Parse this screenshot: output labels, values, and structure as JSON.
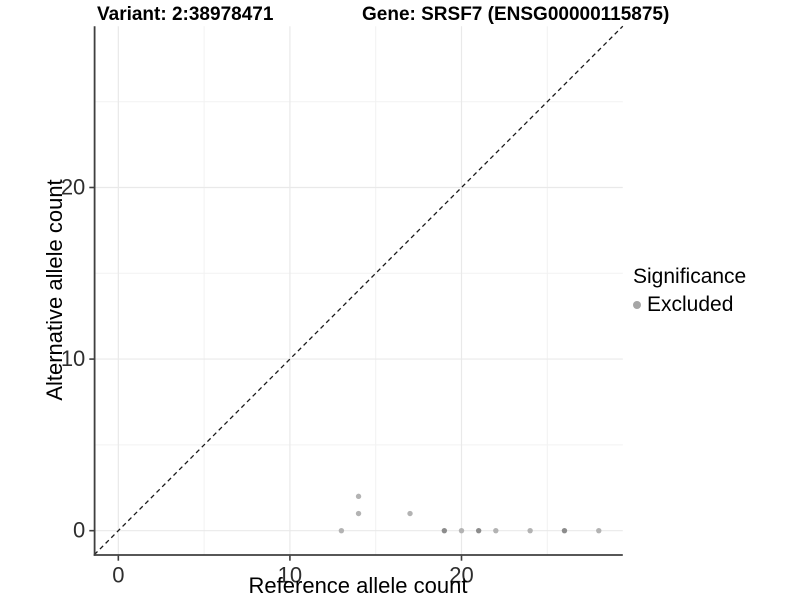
{
  "titles": {
    "variant": "Variant: 2:38978471",
    "gene": "Gene: SRSF7 (ENSG00000115875)"
  },
  "legend": {
    "title": "Significance",
    "items": [
      {
        "label": "Excluded",
        "color": "#a6a6a6"
      }
    ]
  },
  "colors": {
    "point_light": "#b3b3b3",
    "point_dark": "#8c8c8c",
    "grid_major": "#e9e9e9",
    "grid_minor": "#f2f2f2",
    "axis_line": "#3f3f3f",
    "tick_text": "#2e2e2e",
    "identity_line": "#1a1a1a",
    "background": "#ffffff"
  },
  "chart_data": {
    "type": "scatter",
    "title": "Variant: 2:38978471  |  Gene: SRSF7 (ENSG00000115875)",
    "xlabel": "Reference allele count",
    "ylabel": "Alternative allele count",
    "xlim": [
      -1.4,
      29.4
    ],
    "ylim": [
      -1.4,
      29.4
    ],
    "x_ticks": [
      0,
      10,
      20
    ],
    "y_ticks": [
      0,
      10,
      20
    ],
    "x_minor_ticks": [
      5,
      15,
      25
    ],
    "y_minor_ticks": [
      5,
      15,
      25
    ],
    "grid": "on",
    "legend_position": "right",
    "identity_line": {
      "style": "dashed",
      "from": [
        -1.4,
        -1.4
      ],
      "to": [
        29.4,
        29.4
      ]
    },
    "series": [
      {
        "name": "Excluded",
        "points": [
          {
            "x": 13,
            "y": 0,
            "shade": "light"
          },
          {
            "x": 14,
            "y": 1,
            "shade": "light"
          },
          {
            "x": 14,
            "y": 2,
            "shade": "light"
          },
          {
            "x": 17,
            "y": 1,
            "shade": "light"
          },
          {
            "x": 19,
            "y": 0,
            "shade": "dark"
          },
          {
            "x": 20,
            "y": 0,
            "shade": "light"
          },
          {
            "x": 21,
            "y": 0,
            "shade": "dark"
          },
          {
            "x": 22,
            "y": 0,
            "shade": "light"
          },
          {
            "x": 24,
            "y": 0,
            "shade": "light"
          },
          {
            "x": 26,
            "y": 0,
            "shade": "dark"
          },
          {
            "x": 28,
            "y": 0,
            "shade": "light"
          }
        ]
      }
    ]
  }
}
